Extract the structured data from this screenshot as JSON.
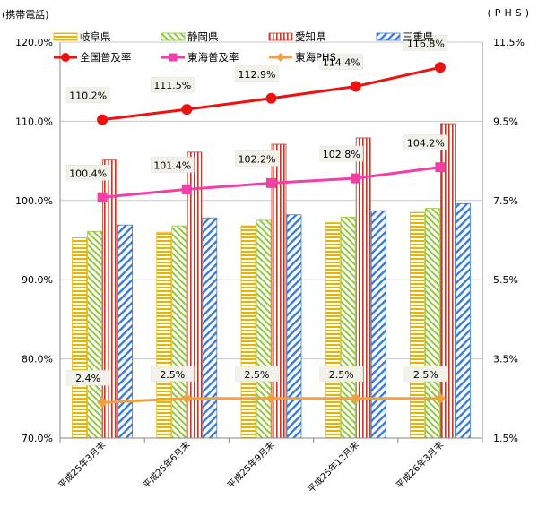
{
  "chart_data": {
    "type": "bar",
    "left_axis_title": "(携帯電話)",
    "right_axis_title": "(PHS)",
    "categories": [
      "平成25年3月末",
      "平成25年6月末",
      "平成25年9月末",
      "平成25年12月末",
      "平成26年3月末"
    ],
    "left_ylim": [
      70,
      120
    ],
    "left_ticks": [
      "70.0%",
      "80.0%",
      "90.0%",
      "100.0%",
      "110.0%",
      "120.0%"
    ],
    "right_ylim": [
      1.5,
      11.5
    ],
    "right_ticks": [
      "1.5%",
      "3.5%",
      "5.5%",
      "7.5%",
      "9.5%",
      "11.5%"
    ],
    "grid": true,
    "legend_position": "top",
    "bar_series": [
      {
        "name": "岐阜県",
        "values": [
          95.3,
          96.0,
          96.8,
          97.2,
          98.5
        ],
        "color": "#e8b400",
        "pattern": "horizontal"
      },
      {
        "name": "静岡県",
        "values": [
          96.1,
          96.8,
          97.5,
          97.9,
          99.0
        ],
        "color": "#92c83e",
        "pattern": "diagonal-back"
      },
      {
        "name": "愛知県",
        "values": [
          105.1,
          106.1,
          107.1,
          107.9,
          109.7
        ],
        "color": "#c0392b",
        "pattern": "vertical"
      },
      {
        "name": "三重県",
        "values": [
          96.9,
          97.8,
          98.2,
          98.7,
          99.6
        ],
        "color": "#3a7dd8",
        "pattern": "diagonal-fwd"
      }
    ],
    "line_series": [
      {
        "name": "全国普及率",
        "values": [
          110.2,
          111.5,
          112.9,
          114.4,
          116.8
        ],
        "labels": [
          "110.2%",
          "111.5%",
          "112.9%",
          "114.4%",
          "116.8%"
        ],
        "axis": "left",
        "color": "#ee1111",
        "marker": "circle"
      },
      {
        "name": "東海普及率",
        "values": [
          100.4,
          101.4,
          102.2,
          102.8,
          104.2
        ],
        "labels": [
          "100.4%",
          "101.4%",
          "102.2%",
          "102.8%",
          "104.2%"
        ],
        "axis": "left",
        "color": "#f23fa8",
        "marker": "square"
      },
      {
        "name": "東海PHS",
        "values": [
          2.4,
          2.5,
          2.5,
          2.5,
          2.5
        ],
        "labels": [
          "2.4%",
          "2.5%",
          "2.5%",
          "2.5%",
          "2.5%"
        ],
        "axis": "right",
        "color": "#f0a040",
        "marker": "diamond"
      }
    ]
  }
}
